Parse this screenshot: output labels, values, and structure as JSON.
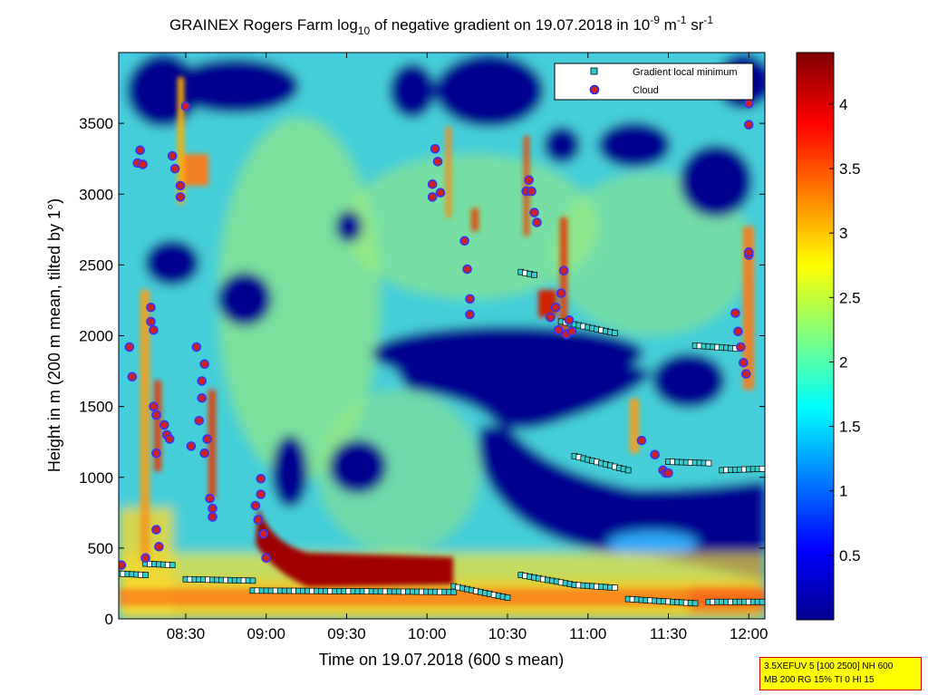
{
  "chart_data": {
    "type": "heatmap",
    "title": "GRAINEX Rogers Farm log10 of negative gradient on 19.07.2018 in 10-9 m-1 sr-1",
    "title_parts": {
      "main": "GRAINEX Rogers Farm log",
      "log_base": "10",
      "mid": " of negative gradient on 19.07.2018 in 10",
      "exp1": "-9",
      "unit_m": " m",
      "exp2": "-1",
      "unit_sr": " sr",
      "exp3": "-1"
    },
    "xlabel": "Time on 19.07.2018 (600 s mean)",
    "ylabel": "Height in m (200 m mean, tilted by 1°)",
    "xlim": [
      "08:05",
      "12:06"
    ],
    "ylim": [
      0,
      4000
    ],
    "x_ticks": [
      "08:30",
      "09:00",
      "09:30",
      "10:00",
      "10:30",
      "11:00",
      "11:30",
      "12:00"
    ],
    "y_ticks": [
      "0",
      "500",
      "1000",
      "1500",
      "2000",
      "2500",
      "3000",
      "3500"
    ],
    "colorbar": {
      "range": [
        0,
        4.4
      ],
      "ticks": [
        "0.5",
        "1",
        "1.5",
        "2",
        "2.5",
        "3",
        "3.5",
        "4"
      ],
      "colormap": "jet"
    },
    "legend": {
      "position": "top-right",
      "entries": [
        {
          "label": "Gradient local minimum",
          "marker": "square",
          "color": "#33cccc"
        },
        {
          "label": "Cloud",
          "marker": "circle",
          "color": "#cc2222"
        }
      ]
    },
    "info_box": [
      "3.5XEFUV 5 [100 2500] NH 600",
      "MB 200 RG 15% TI 0 HI 15"
    ],
    "grid": false,
    "cloud_points": [
      [
        "08:06",
        380
      ],
      [
        "08:09",
        1920
      ],
      [
        "08:10",
        1710
      ],
      [
        "08:12",
        3220
      ],
      [
        "08:13",
        3310
      ],
      [
        "08:14",
        3210
      ],
      [
        "08:15",
        430
      ],
      [
        "08:17",
        2100
      ],
      [
        "08:17",
        2200
      ],
      [
        "08:18",
        2040
      ],
      [
        "08:18",
        1500
      ],
      [
        "08:19",
        1440
      ],
      [
        "08:19",
        1170
      ],
      [
        "08:19",
        630
      ],
      [
        "08:20",
        510
      ],
      [
        "08:22",
        1370
      ],
      [
        "08:23",
        1300
      ],
      [
        "08:24",
        1270
      ],
      [
        "08:25",
        3270
      ],
      [
        "08:26",
        3180
      ],
      [
        "08:28",
        3060
      ],
      [
        "08:28",
        2980
      ],
      [
        "08:30",
        3620
      ],
      [
        "08:32",
        1220
      ],
      [
        "08:34",
        1920
      ],
      [
        "08:35",
        1400
      ],
      [
        "08:36",
        1680
      ],
      [
        "08:36",
        1560
      ],
      [
        "08:37",
        1800
      ],
      [
        "08:37",
        1170
      ],
      [
        "08:38",
        1270
      ],
      [
        "08:39",
        850
      ],
      [
        "08:40",
        780
      ],
      [
        "08:40",
        720
      ],
      [
        "08:56",
        800
      ],
      [
        "08:57",
        700
      ],
      [
        "08:58",
        990
      ],
      [
        "08:58",
        880
      ],
      [
        "08:59",
        600
      ],
      [
        "09:00",
        430
      ],
      [
        "10:02",
        3070
      ],
      [
        "10:02",
        2980
      ],
      [
        "10:03",
        3320
      ],
      [
        "10:04",
        3230
      ],
      [
        "10:05",
        3010
      ],
      [
        "10:14",
        2670
      ],
      [
        "10:15",
        2470
      ],
      [
        "10:16",
        2260
      ],
      [
        "10:16",
        2150
      ],
      [
        "10:37",
        3020
      ],
      [
        "10:38",
        3100
      ],
      [
        "10:39",
        3020
      ],
      [
        "10:40",
        2870
      ],
      [
        "10:41",
        2800
      ],
      [
        "10:46",
        2130
      ],
      [
        "10:48",
        2200
      ],
      [
        "10:49",
        2040
      ],
      [
        "10:50",
        2300
      ],
      [
        "10:51",
        2460
      ],
      [
        "10:52",
        2010
      ],
      [
        "10:53",
        2110
      ],
      [
        "10:54",
        2030
      ],
      [
        "11:20",
        1260
      ],
      [
        "11:25",
        1160
      ],
      [
        "11:28",
        1050
      ],
      [
        "11:29",
        1030
      ],
      [
        "11:30",
        1030
      ],
      [
        "11:55",
        2160
      ],
      [
        "11:56",
        2030
      ],
      [
        "11:57",
        1920
      ],
      [
        "11:58",
        1810
      ],
      [
        "11:59",
        1730
      ],
      [
        "12:00",
        2570
      ],
      [
        "12:00",
        2590
      ],
      [
        "12:00",
        3490
      ],
      [
        "12:00",
        3640
      ]
    ],
    "gradient_min_tracks": [
      {
        "from": [
          "08:05",
          320
        ],
        "to": [
          "08:15",
          310
        ]
      },
      {
        "from": [
          "08:15",
          390
        ],
        "to": [
          "08:25",
          380
        ]
      },
      {
        "from": [
          "08:30",
          280
        ],
        "to": [
          "08:55",
          270
        ]
      },
      {
        "from": [
          "08:55",
          200
        ],
        "to": [
          "10:10",
          190
        ]
      },
      {
        "from": [
          "10:10",
          230
        ],
        "to": [
          "10:30",
          150
        ]
      },
      {
        "from": [
          "10:35",
          310
        ],
        "to": [
          "10:55",
          240
        ]
      },
      {
        "from": [
          "10:55",
          240
        ],
        "to": [
          "11:10",
          220
        ]
      },
      {
        "from": [
          "11:15",
          140
        ],
        "to": [
          "11:40",
          110
        ]
      },
      {
        "from": [
          "11:45",
          120
        ],
        "to": [
          "12:05",
          120
        ]
      },
      {
        "from": [
          "10:35",
          2450
        ],
        "to": [
          "10:40",
          2430
        ]
      },
      {
        "from": [
          "10:50",
          2100
        ],
        "to": [
          "11:10",
          2020
        ]
      },
      {
        "from": [
          "11:40",
          1930
        ],
        "to": [
          "11:55",
          1910
        ]
      },
      {
        "from": [
          "10:55",
          1150
        ],
        "to": [
          "11:15",
          1050
        ]
      },
      {
        "from": [
          "11:30",
          1110
        ],
        "to": [
          "11:45",
          1100
        ]
      },
      {
        "from": [
          "11:50",
          1050
        ],
        "to": [
          "12:05",
          1060
        ]
      }
    ]
  }
}
